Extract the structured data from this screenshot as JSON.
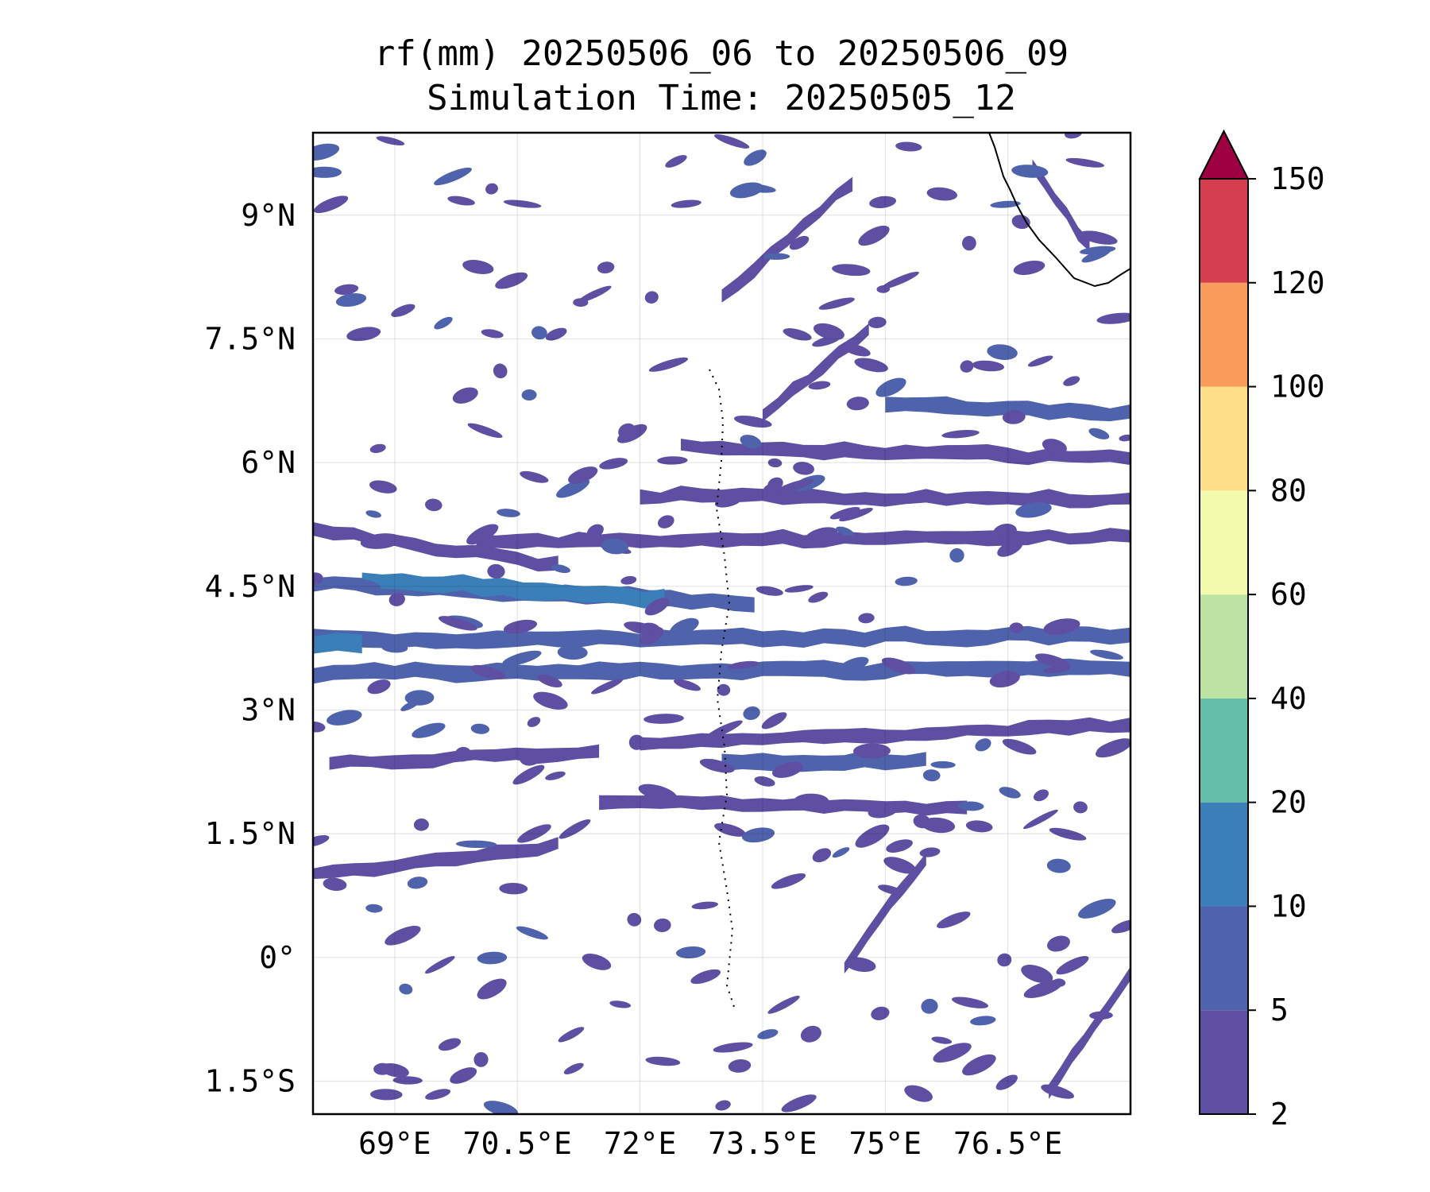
{
  "title": {
    "line1": "rf(mm) 20250506_06 to 20250506_09",
    "line2": "Simulation Time: 20250505_12"
  },
  "chart_data": {
    "type": "heatmap",
    "variable": "rf(mm)",
    "xlim": [
      68.0,
      78.0
    ],
    "ylim": [
      -1.9,
      10.0
    ],
    "x_ticks": [
      69,
      70.5,
      72,
      73.5,
      75,
      76.5
    ],
    "y_ticks": [
      9,
      7.5,
      6,
      4.5,
      3,
      1.5,
      0,
      -1.5
    ],
    "x_tick_labels": [
      "69°E",
      "70.5°E",
      "72°E",
      "73.5°E",
      "75°E",
      "76.5°E"
    ],
    "y_tick_labels": [
      "9°N",
      "7.5°N",
      "6°N",
      "4.5°N",
      "3°N",
      "1.5°N",
      "0°",
      "1.5°S"
    ],
    "grid": true,
    "colorbar": {
      "levels": [
        2,
        5,
        10,
        20,
        40,
        60,
        80,
        100,
        120,
        150
      ],
      "tick_labels": [
        "2",
        "5",
        "10",
        "20",
        "40",
        "60",
        "80",
        "100",
        "120",
        "150"
      ],
      "colors": [
        "#5e4fa2",
        "#4f63ad",
        "#3b7fb9",
        "#63bfa8",
        "#bce3a2",
        "#f3faad",
        "#fbde87",
        "#f99c5b",
        "#d53e4f"
      ],
      "extend_color": "#9e0142",
      "extend": "max"
    },
    "rain_bands": [
      {
        "lon0": 68.0,
        "lat0": 3.85,
        "lon1": 78.0,
        "lat1": 3.9,
        "level": 2
      },
      {
        "lon0": 68.0,
        "lat0": 3.45,
        "lon1": 78.0,
        "lat1": 3.5,
        "level": 2
      },
      {
        "lon0": 68.0,
        "lat0": 4.55,
        "lon1": 73.4,
        "lat1": 4.3,
        "level": 2
      },
      {
        "lon0": 68.6,
        "lat0": 4.6,
        "lon1": 72.3,
        "lat1": 4.35,
        "level": 3
      },
      {
        "lon0": 68.0,
        "lat0": 3.82,
        "lon1": 68.6,
        "lat1": 3.82,
        "level": 3
      },
      {
        "lon0": 72.0,
        "lat0": 2.6,
        "lon1": 78.0,
        "lat1": 2.8,
        "level": 1
      },
      {
        "lon0": 73.0,
        "lat0": 2.35,
        "lon1": 75.5,
        "lat1": 2.4,
        "level": 2
      },
      {
        "lon0": 71.5,
        "lat0": 1.9,
        "lon1": 76.0,
        "lat1": 1.8,
        "level": 1
      },
      {
        "lon0": 70.0,
        "lat0": 5.05,
        "lon1": 78.0,
        "lat1": 5.1,
        "level": 1
      },
      {
        "lon0": 72.0,
        "lat0": 5.6,
        "lon1": 78.0,
        "lat1": 5.55,
        "level": 1
      },
      {
        "lon0": 72.5,
        "lat0": 6.2,
        "lon1": 78.0,
        "lat1": 6.05,
        "level": 1
      },
      {
        "lon0": 75.0,
        "lat0": 6.7,
        "lon1": 78.0,
        "lat1": 6.6,
        "level": 2
      },
      {
        "lon0": 68.0,
        "lat0": 1.0,
        "lon1": 71.0,
        "lat1": 1.35,
        "level": 1
      },
      {
        "lon0": 68.2,
        "lat0": 2.35,
        "lon1": 71.5,
        "lat1": 2.5,
        "level": 1
      },
      {
        "lon0": 68.0,
        "lat0": 5.2,
        "lon1": 71.0,
        "lat1": 4.75,
        "level": 1
      },
      {
        "lon0": 73.0,
        "lat0": 8.0,
        "lon1": 74.6,
        "lat1": 9.4,
        "level": 1
      },
      {
        "lon0": 73.5,
        "lat0": 6.6,
        "lon1": 74.8,
        "lat1": 7.6,
        "level": 1
      },
      {
        "lon0": 77.0,
        "lat0": -1.6,
        "lon1": 78.0,
        "lat1": -0.2,
        "level": 1
      },
      {
        "lon0": 76.8,
        "lat0": 9.6,
        "lon1": 77.5,
        "lat1": 8.6,
        "level": 1
      },
      {
        "lon0": 74.5,
        "lat0": -0.1,
        "lon1": 75.5,
        "lat1": 1.2,
        "level": 1
      }
    ]
  }
}
